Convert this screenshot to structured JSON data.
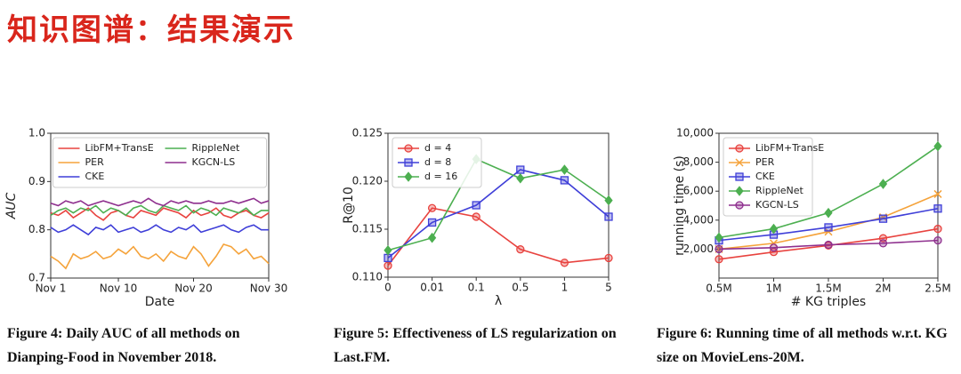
{
  "title": "知识图谱：结果演示",
  "chart_data": [
    {
      "type": "line",
      "caption": "Figure 4: Daily AUC of all methods on Dianping-Food in November 2018.",
      "xlabel": "Date",
      "ylabel": "AUC",
      "categories": [
        "Nov 1",
        null,
        null,
        null,
        null,
        null,
        null,
        null,
        null,
        "Nov 10",
        null,
        null,
        null,
        null,
        null,
        null,
        null,
        null,
        null,
        "Nov 20",
        null,
        null,
        null,
        null,
        null,
        null,
        null,
        null,
        null,
        "Nov 30"
      ],
      "ylim": [
        0.7,
        1
      ],
      "yticks": [
        0.7,
        0.8,
        0.9,
        {
          "value": 1,
          "label": "1.0"
        }
      ],
      "legend": "upper center",
      "legend_columns": 2,
      "series": [
        {
          "name": "LibFM+TransE",
          "color": "#e8433f",
          "values": [
            0.835,
            0.83,
            0.84,
            0.825,
            0.835,
            0.845,
            0.83,
            0.82,
            0.835,
            0.84,
            0.83,
            0.825,
            0.84,
            0.835,
            0.83,
            0.845,
            0.84,
            0.835,
            0.825,
            0.84,
            0.83,
            0.835,
            0.845,
            0.83,
            0.825,
            0.835,
            0.84,
            0.83,
            0.825,
            0.835
          ]
        },
        {
          "name": "PER",
          "color": "#f5a33b",
          "values": [
            0.745,
            0.735,
            0.72,
            0.75,
            0.74,
            0.745,
            0.755,
            0.74,
            0.745,
            0.76,
            0.75,
            0.765,
            0.745,
            0.74,
            0.75,
            0.735,
            0.755,
            0.745,
            0.74,
            0.765,
            0.75,
            0.725,
            0.745,
            0.77,
            0.765,
            0.75,
            0.76,
            0.74,
            0.745,
            0.73
          ]
        },
        {
          "name": "CKE",
          "color": "#3f3fd8",
          "values": [
            0.805,
            0.795,
            0.8,
            0.81,
            0.8,
            0.79,
            0.805,
            0.8,
            0.81,
            0.795,
            0.8,
            0.805,
            0.795,
            0.8,
            0.81,
            0.8,
            0.795,
            0.805,
            0.8,
            0.81,
            0.795,
            0.8,
            0.805,
            0.81,
            0.8,
            0.795,
            0.805,
            0.81,
            0.8,
            0.8
          ]
        },
        {
          "name": "RippleNet",
          "color": "#4caf50",
          "values": [
            0.83,
            0.84,
            0.845,
            0.835,
            0.845,
            0.84,
            0.85,
            0.835,
            0.845,
            0.84,
            0.83,
            0.845,
            0.85,
            0.84,
            0.835,
            0.85,
            0.845,
            0.84,
            0.85,
            0.835,
            0.845,
            0.84,
            0.83,
            0.845,
            0.84,
            0.835,
            0.845,
            0.83,
            0.84,
            0.84
          ]
        },
        {
          "name": "KGCN-LS",
          "color": "#8e2f8e",
          "values": [
            0.855,
            0.85,
            0.86,
            0.855,
            0.86,
            0.85,
            0.855,
            0.86,
            0.855,
            0.85,
            0.855,
            0.86,
            0.855,
            0.865,
            0.855,
            0.85,
            0.86,
            0.855,
            0.86,
            0.855,
            0.855,
            0.86,
            0.855,
            0.855,
            0.86,
            0.855,
            0.86,
            0.865,
            0.855,
            0.86
          ]
        }
      ]
    },
    {
      "type": "line",
      "caption": "Figure 5: Effectiveness of LS regularization on Last.FM.",
      "xlabel": "λ",
      "ylabel": "R@10",
      "categories": [
        "0",
        "0.01",
        "0.1",
        "0.5",
        "1",
        "5"
      ],
      "ylim": [
        0.11,
        0.125
      ],
      "yticks": [
        {
          "value": 0.11,
          "label": "0.110"
        },
        0.115,
        {
          "value": 0.12,
          "label": "0.120"
        },
        0.125
      ],
      "legend": "upper left",
      "legend_columns": 1,
      "series": [
        {
          "name": "d = 4",
          "color": "#e8433f",
          "marker": "circle",
          "values": [
            0.1112,
            0.1172,
            0.1163,
            0.1129,
            0.1115,
            0.112
          ]
        },
        {
          "name": "d = 8",
          "color": "#3f3fd8",
          "marker": "square",
          "values": [
            0.112,
            0.1157,
            0.1175,
            0.1212,
            0.1201,
            0.1163
          ]
        },
        {
          "name": "d = 16",
          "color": "#4caf50",
          "marker": "diamond",
          "values": [
            0.1128,
            0.1141,
            0.1223,
            0.1203,
            0.1212,
            0.118
          ]
        }
      ]
    },
    {
      "type": "line",
      "caption": "Figure 6: Running time of all methods w.r.t. KG size on MovieLens-20M.",
      "xlabel": "# KG triples",
      "ylabel": "running time (s)",
      "categories": [
        "0.5M",
        "1M",
        "1.5M",
        "2M",
        "2.5M"
      ],
      "ylim": [
        0,
        10000
      ],
      "yticks": [
        {
          "value": 2000,
          "label": "2,000"
        },
        {
          "value": 4000,
          "label": "4,000"
        },
        {
          "value": 6000,
          "label": "6,000"
        },
        {
          "value": 8000,
          "label": "8,000"
        },
        {
          "value": 10000,
          "label": "10,000"
        }
      ],
      "legend": "upper left",
      "legend_columns": 1,
      "series": [
        {
          "name": "LibFM+TransE",
          "color": "#e8433f",
          "marker": "circle",
          "values": [
            1300,
            1800,
            2250,
            2750,
            3400
          ]
        },
        {
          "name": "PER",
          "color": "#f5a33b",
          "marker": "x",
          "values": [
            2000,
            2400,
            3200,
            4200,
            5800
          ]
        },
        {
          "name": "CKE",
          "color": "#3f3fd8",
          "marker": "square",
          "values": [
            2600,
            3000,
            3500,
            4100,
            4800
          ]
        },
        {
          "name": "RippleNet",
          "color": "#4caf50",
          "marker": "diamond",
          "values": [
            2800,
            3400,
            4500,
            6500,
            9100
          ]
        },
        {
          "name": "KGCN-LS",
          "color": "#8e2f8e",
          "marker": "circle",
          "values": [
            2000,
            2100,
            2300,
            2400,
            2600
          ]
        }
      ]
    }
  ]
}
